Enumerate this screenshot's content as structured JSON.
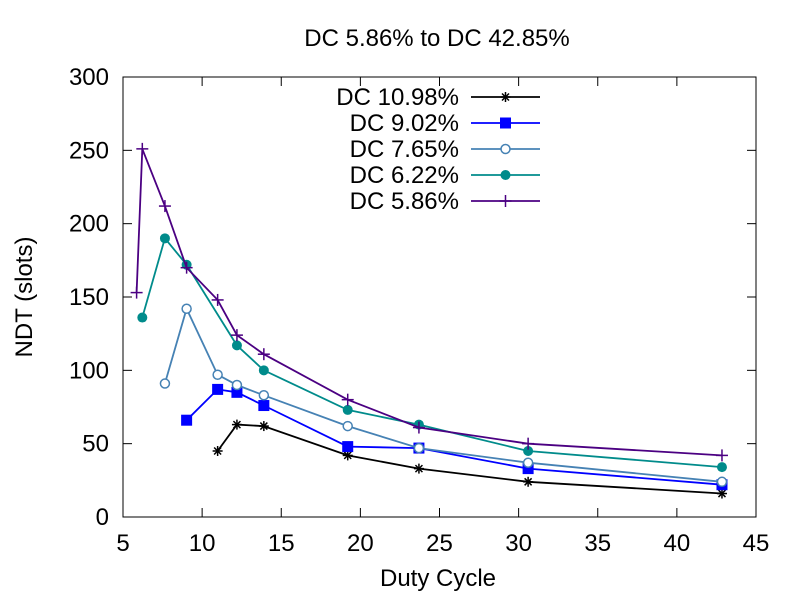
{
  "chart_data": {
    "type": "line",
    "title": "DC 5.86% to DC 42.85%",
    "xlabel": "Duty Cycle",
    "ylabel": "NDT (slots)",
    "xlim": [
      5,
      45
    ],
    "ylim": [
      0,
      300
    ],
    "xticks": [
      "5",
      "10",
      "15",
      "20",
      "25",
      "30",
      "35",
      "40",
      "45"
    ],
    "yticks": [
      "0",
      "50",
      "100",
      "150",
      "200",
      "250",
      "300"
    ],
    "grid": false,
    "legend_position": "top-center",
    "series": [
      {
        "name": "DC 10.98%",
        "color": "#000000",
        "marker": "asterisk",
        "points": [
          [
            10.98,
            45
          ],
          [
            12.2,
            63
          ],
          [
            13.9,
            62
          ],
          [
            19.2,
            42
          ],
          [
            23.7,
            33
          ],
          [
            30.6,
            24
          ],
          [
            42.85,
            16
          ]
        ]
      },
      {
        "name": "DC 9.02%",
        "color": "#0000ff",
        "marker": "filled-square",
        "points": [
          [
            9.02,
            66
          ],
          [
            10.98,
            87
          ],
          [
            12.2,
            85
          ],
          [
            13.9,
            76
          ],
          [
            19.2,
            48
          ],
          [
            23.7,
            47
          ],
          [
            30.6,
            33
          ],
          [
            42.85,
            22
          ]
        ]
      },
      {
        "name": "DC 7.65%",
        "color": "#4682b4",
        "marker": "open-circle",
        "points": [
          [
            7.65,
            91
          ],
          [
            9.02,
            142
          ],
          [
            10.98,
            97
          ],
          [
            12.2,
            90
          ],
          [
            13.9,
            83
          ],
          [
            19.2,
            62
          ],
          [
            23.7,
            47
          ],
          [
            30.6,
            37
          ],
          [
            42.85,
            24
          ]
        ]
      },
      {
        "name": "DC 6.22%",
        "color": "#008b8b",
        "marker": "filled-circle",
        "points": [
          [
            6.22,
            136
          ],
          [
            7.65,
            190
          ],
          [
            9.02,
            172
          ],
          [
            12.2,
            117
          ],
          [
            13.9,
            100
          ],
          [
            19.2,
            73
          ],
          [
            23.7,
            63
          ],
          [
            30.6,
            45
          ],
          [
            42.85,
            34
          ]
        ]
      },
      {
        "name": "DC 5.86%",
        "color": "#4b0082",
        "marker": "plus",
        "points": [
          [
            5.86,
            153
          ],
          [
            6.22,
            251
          ],
          [
            7.65,
            212
          ],
          [
            9.02,
            170
          ],
          [
            10.98,
            148
          ],
          [
            12.2,
            124
          ],
          [
            13.9,
            111
          ],
          [
            19.2,
            80
          ],
          [
            23.7,
            61
          ],
          [
            30.6,
            50
          ],
          [
            42.85,
            42
          ]
        ]
      }
    ]
  }
}
